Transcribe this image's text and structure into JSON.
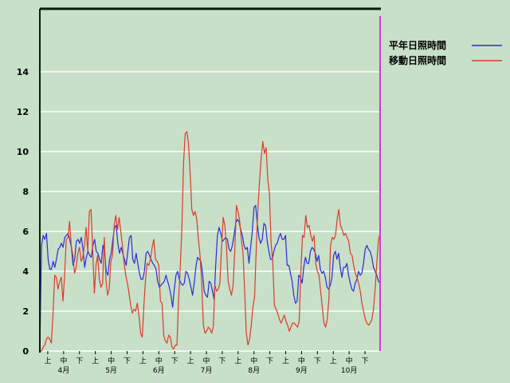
{
  "chart_data": {
    "type": "line",
    "title": "",
    "xlabel": "",
    "ylabel": "",
    "ylim": [
      0,
      17.2
    ],
    "yticks": [
      0,
      2,
      4,
      6,
      8,
      10,
      12,
      14
    ],
    "grid": true,
    "legend_position": "top-right",
    "x_period_labels": [
      "上",
      "中",
      "下",
      "上",
      "中",
      "下",
      "上",
      "中",
      "下",
      "上",
      "中",
      "下",
      "上",
      "中",
      "下",
      "上",
      "中",
      "下",
      "上",
      "中",
      "下"
    ],
    "x_month_labels": [
      "4月",
      "5月",
      "6月",
      "7月",
      "8月",
      "9月",
      "10月"
    ],
    "series": [
      {
        "name": "平年日照時間",
        "color": "#2b2bd6",
        "values": [
          0.0,
          5.3,
          5.8,
          5.6,
          5.9,
          4.6,
          4.1,
          4.1,
          4.5,
          4.2,
          4.6,
          5.1,
          5.2,
          5.4,
          5.2,
          5.7,
          5.8,
          5.9,
          5.6,
          5.2,
          4.3,
          4.6,
          5.5,
          5.6,
          5.4,
          5.7,
          5.1,
          4.2,
          4.7,
          5.0,
          4.8,
          4.7,
          5.3,
          5.6,
          5.0,
          4.9,
          4.6,
          4.4,
          5.3,
          5.0,
          4.0,
          3.8,
          4.6,
          4.9,
          5.6,
          6.2,
          6.3,
          5.4,
          4.9,
          5.2,
          4.9,
          4.6,
          4.3,
          5.0,
          5.7,
          5.8,
          4.6,
          4.4,
          4.9,
          4.4,
          3.9,
          3.6,
          3.6,
          4.0,
          4.9,
          5.0,
          4.8,
          4.6,
          4.4,
          4.3,
          4.1,
          3.5,
          3.2,
          3.3,
          3.4,
          3.5,
          3.8,
          3.5,
          3.2,
          2.8,
          2.2,
          3.1,
          3.8,
          4.0,
          3.6,
          3.4,
          3.3,
          3.4,
          4.0,
          3.9,
          3.6,
          3.2,
          2.8,
          3.4,
          4.2,
          4.7,
          4.6,
          4.5,
          3.9,
          3.0,
          2.8,
          2.7,
          3.5,
          3.4,
          3.0,
          2.6,
          4.4,
          5.8,
          6.2,
          5.9,
          5.5,
          5.6,
          5.7,
          5.6,
          5.1,
          5.0,
          5.3,
          5.8,
          6.4,
          6.6,
          6.5,
          6.1,
          5.8,
          5.3,
          5.1,
          5.2,
          4.4,
          5.2,
          6.0,
          7.2,
          7.3,
          6.4,
          5.7,
          5.4,
          5.6,
          6.4,
          6.3,
          5.5,
          5.0,
          4.6,
          4.6,
          5.0,
          5.3,
          5.4,
          5.7,
          5.9,
          5.6,
          5.6,
          5.8,
          4.3,
          4.3,
          3.9,
          3.5,
          2.8,
          2.4,
          2.5,
          3.8,
          3.7,
          3.4,
          4.2,
          4.7,
          4.4,
          4.4,
          5.0,
          5.2,
          5.1,
          4.9,
          4.5,
          4.8,
          4.1,
          3.9,
          4.0,
          3.7,
          3.2,
          3.1,
          3.3,
          3.7,
          4.8,
          5.0,
          4.6,
          4.9,
          4.2,
          3.7,
          4.2,
          4.2,
          4.4,
          3.8,
          3.4,
          3.1,
          3.0,
          3.4,
          3.6,
          4.0,
          3.8,
          3.9,
          4.4,
          5.1,
          5.3,
          5.1,
          5.0,
          4.7,
          4.2,
          4.0,
          3.8,
          3.5,
          3.4
        ],
        "markers": false
      },
      {
        "name": "移動日照時間",
        "color": "#dd3b2a",
        "values": [
          0.0,
          0.0,
          0.2,
          0.3,
          0.6,
          0.7,
          0.6,
          0.4,
          1.9,
          3.8,
          3.7,
          3.1,
          3.5,
          3.7,
          2.5,
          3.8,
          5.6,
          5.7,
          6.5,
          5.3,
          4.8,
          3.9,
          4.2,
          4.9,
          5.2,
          4.5,
          4.7,
          5.3,
          6.2,
          5.0,
          7.0,
          7.1,
          5.1,
          2.9,
          4.3,
          4.8,
          3.6,
          3.2,
          3.4,
          5.7,
          3.6,
          2.8,
          3.1,
          4.5,
          4.8,
          6.3,
          6.8,
          6.1,
          6.7,
          6.0,
          5.3,
          4.4,
          3.8,
          3.4,
          2.9,
          2.3,
          1.9,
          2.1,
          2.0,
          2.4,
          1.8,
          0.9,
          0.7,
          2.3,
          3.6,
          4.4,
          4.3,
          4.6,
          5.2,
          5.6,
          4.6,
          4.5,
          4.3,
          2.5,
          2.4,
          0.8,
          0.5,
          0.4,
          0.8,
          0.7,
          0.2,
          0.1,
          0.3,
          0.3,
          2.6,
          4.2,
          6.2,
          9.4,
          10.9,
          11.0,
          10.4,
          8.9,
          7.1,
          6.8,
          7.0,
          6.6,
          5.6,
          4.8,
          3.4,
          1.3,
          0.9,
          1.0,
          1.2,
          1.1,
          0.9,
          1.2,
          3.3,
          3.0,
          3.1,
          3.4,
          5.2,
          6.7,
          6.3,
          5.2,
          3.5,
          3.1,
          2.8,
          3.3,
          5.0,
          7.3,
          7.0,
          6.5,
          5.6,
          4.9,
          3.0,
          0.9,
          0.3,
          0.6,
          1.3,
          2.2,
          2.7,
          5.1,
          7.1,
          8.5,
          9.7,
          10.5,
          9.9,
          10.2,
          8.6,
          7.9,
          5.4,
          4.5,
          2.3,
          2.1,
          1.9,
          1.6,
          1.4,
          1.6,
          1.8,
          1.5,
          1.3,
          1.0,
          1.2,
          1.4,
          1.4,
          1.3,
          1.2,
          1.5,
          3.9,
          5.8,
          5.7,
          6.8,
          6.2,
          6.3,
          5.8,
          5.5,
          5.8,
          4.4,
          4.0,
          3.8,
          3.0,
          2.2,
          1.4,
          1.2,
          1.6,
          2.6,
          5.3,
          5.7,
          5.6,
          5.8,
          6.6,
          7.1,
          6.3,
          6.1,
          5.8,
          5.9,
          5.7,
          5.5,
          4.9,
          4.8,
          4.3,
          3.9,
          3.7,
          3.4,
          3.0,
          2.4,
          2.0,
          1.6,
          1.4,
          1.3,
          1.4,
          1.6,
          2.1,
          3.1,
          4.4,
          5.6,
          5.9
        ],
        "markers": false
      }
    ]
  }
}
